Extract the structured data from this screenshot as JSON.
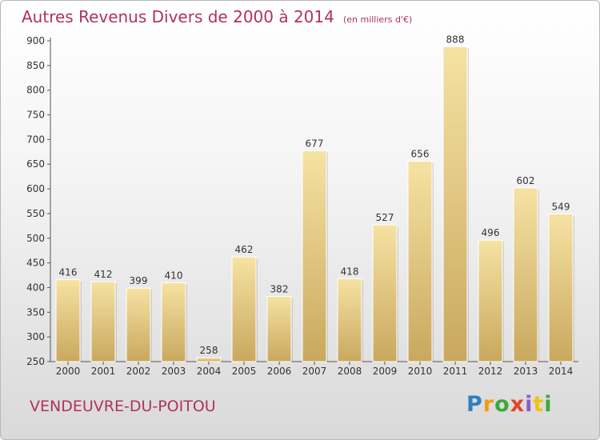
{
  "chart_data": {
    "type": "bar",
    "title": "Autres Revenus Divers de 2000 à 2014",
    "subtitle": "(en milliers d'€)",
    "categories": [
      "2000",
      "2001",
      "2002",
      "2003",
      "2004",
      "2005",
      "2006",
      "2007",
      "2008",
      "2009",
      "2010",
      "2011",
      "2012",
      "2013",
      "2014"
    ],
    "values": [
      416,
      412,
      399,
      410,
      258,
      462,
      382,
      677,
      418,
      527,
      656,
      888,
      496,
      602,
      549
    ],
    "ylim": [
      250,
      900
    ],
    "yticks": [
      250,
      300,
      350,
      400,
      450,
      500,
      550,
      600,
      650,
      700,
      750,
      800,
      850,
      900
    ],
    "grid": false,
    "bar_color": "#e6c97a"
  },
  "footer": {
    "city": "VENDEUVRE-DU-POITOU",
    "logo_letters": [
      "P",
      "r",
      "o",
      "x",
      "i",
      "t",
      "i"
    ]
  }
}
